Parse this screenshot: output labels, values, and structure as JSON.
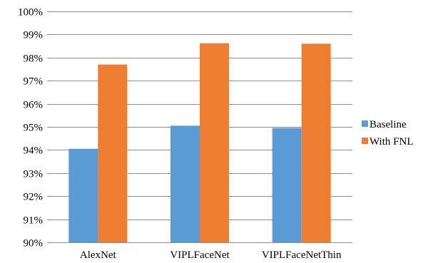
{
  "chart_data": {
    "type": "bar",
    "title": "",
    "xlabel": "",
    "ylabel": "",
    "categories": [
      "AlexNet",
      "VIPLFaceNet",
      "VIPLFaceNetThin"
    ],
    "series": [
      {
        "name": "Baseline",
        "values": [
          94.05,
          95.05,
          94.95
        ],
        "color": "#5b9bd5"
      },
      {
        "name": "With FNL",
        "values": [
          97.7,
          98.62,
          98.6
        ],
        "color": "#ed7d31"
      }
    ],
    "ylim": [
      90,
      100
    ],
    "y_ticks": [
      "90%",
      "91%",
      "92%",
      "93%",
      "94%",
      "95%",
      "96%",
      "97%",
      "98%",
      "99%",
      "100%"
    ],
    "grid": true,
    "legend_position": "right"
  }
}
